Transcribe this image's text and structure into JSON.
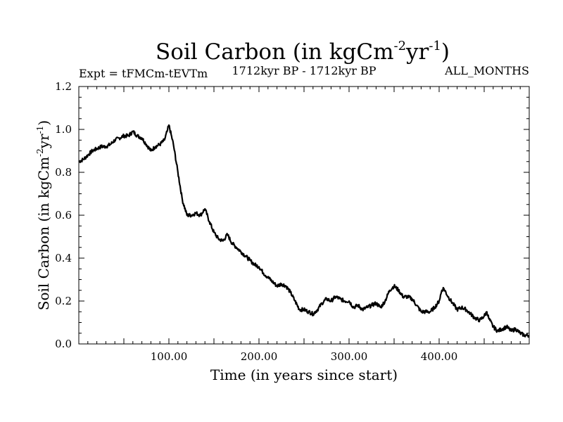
{
  "chart_data": {
    "type": "line",
    "title_main": "Soil Carbon (in kgCm",
    "title_sup1": "-2",
    "title_mid": "yr",
    "title_sup2": "-1",
    "title_close": ")",
    "subtitle_left": "Expt = tFMCm-tEVTm",
    "subtitle_center": "1712kyr BP - 1712kyr BP",
    "subtitle_right": "ALL_MONTHS",
    "xlabel": "Time (in years since start)",
    "ylabel_main": "Soil Carbon (in kgCm",
    "ylabel_sup1": "-2",
    "ylabel_mid": "yr",
    "ylabel_sup2": "-1",
    "ylabel_close": ")",
    "xlim": [
      0,
      500
    ],
    "ylim": [
      0,
      1.2
    ],
    "xticks": [
      100,
      200,
      300,
      400
    ],
    "xtick_labels": [
      "100.00",
      "200.00",
      "300.00",
      "400.00"
    ],
    "yticks": [
      0,
      0.2,
      0.4,
      0.6,
      0.8,
      1.0,
      1.2
    ],
    "ytick_labels": [
      "0.0",
      "0.2",
      "0.4",
      "0.6",
      "0.8",
      "1.0",
      "1.2"
    ],
    "grid": false,
    "line_color": "#000000",
    "series": [
      {
        "name": "Soil Carbon",
        "x": [
          0,
          5,
          10,
          15,
          20,
          25,
          30,
          35,
          40,
          45,
          50,
          55,
          60,
          65,
          70,
          75,
          80,
          85,
          90,
          95,
          98,
          100,
          105,
          110,
          115,
          120,
          125,
          130,
          135,
          140,
          145,
          150,
          155,
          160,
          165,
          170,
          175,
          180,
          185,
          190,
          195,
          200,
          205,
          210,
          215,
          220,
          225,
          230,
          235,
          240,
          245,
          250,
          255,
          260,
          265,
          270,
          275,
          280,
          285,
          290,
          295,
          300,
          305,
          310,
          315,
          320,
          325,
          330,
          335,
          340,
          345,
          350,
          355,
          360,
          365,
          370,
          375,
          380,
          385,
          390,
          395,
          400,
          403,
          405,
          410,
          415,
          420,
          425,
          430,
          435,
          440,
          445,
          450,
          453,
          455,
          460,
          465,
          470,
          475,
          480,
          485,
          490,
          495,
          500
        ],
        "values": [
          0.85,
          0.86,
          0.88,
          0.9,
          0.91,
          0.92,
          0.92,
          0.93,
          0.95,
          0.96,
          0.97,
          0.97,
          0.99,
          0.97,
          0.96,
          0.93,
          0.9,
          0.92,
          0.93,
          0.95,
          0.99,
          1.02,
          0.93,
          0.8,
          0.67,
          0.6,
          0.6,
          0.61,
          0.6,
          0.63,
          0.57,
          0.52,
          0.49,
          0.48,
          0.51,
          0.47,
          0.45,
          0.43,
          0.41,
          0.39,
          0.37,
          0.36,
          0.33,
          0.31,
          0.29,
          0.27,
          0.28,
          0.27,
          0.24,
          0.2,
          0.16,
          0.16,
          0.15,
          0.14,
          0.16,
          0.19,
          0.21,
          0.2,
          0.22,
          0.21,
          0.2,
          0.2,
          0.17,
          0.18,
          0.16,
          0.17,
          0.18,
          0.19,
          0.17,
          0.2,
          0.25,
          0.27,
          0.25,
          0.22,
          0.22,
          0.21,
          0.18,
          0.15,
          0.15,
          0.15,
          0.17,
          0.2,
          0.25,
          0.26,
          0.22,
          0.19,
          0.16,
          0.17,
          0.16,
          0.14,
          0.12,
          0.11,
          0.13,
          0.15,
          0.12,
          0.08,
          0.06,
          0.07,
          0.08,
          0.06,
          0.07,
          0.05,
          0.04,
          0.04
        ]
      }
    ]
  }
}
